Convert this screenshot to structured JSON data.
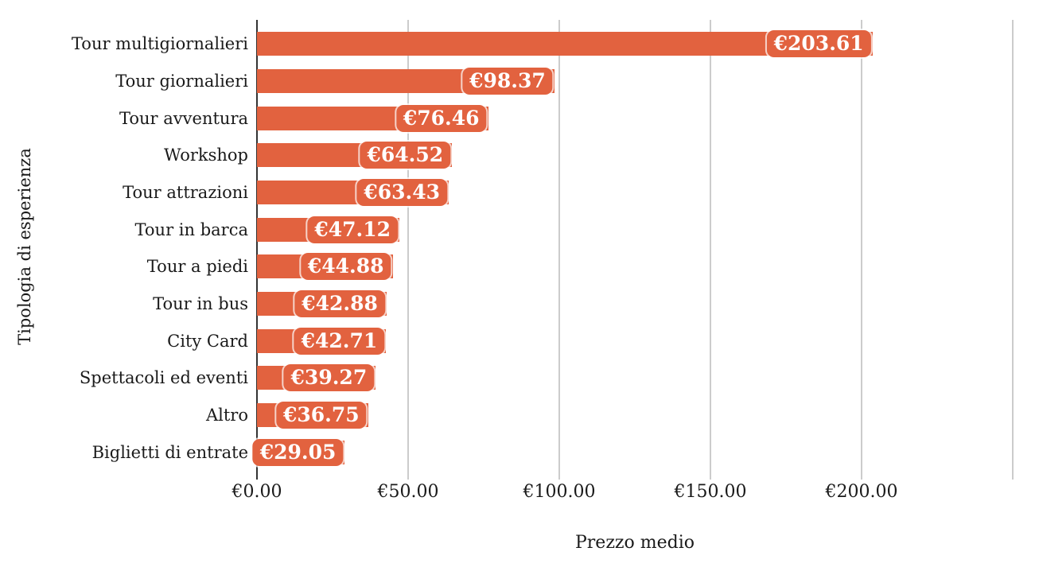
{
  "chart_data": {
    "type": "bar",
    "orientation": "horizontal",
    "xlabel": "Prezzo medio",
    "ylabel": "Tipologia di esperienza",
    "categories": [
      "Tour multigiornalieri",
      "Tour giornalieri",
      "Tour avventura",
      "Workshop",
      "Tour attrazioni",
      "Tour in barca",
      "Tour a piedi",
      "Tour in bus",
      "City Card",
      "Spettacoli ed eventi",
      "Altro",
      "Biglietti di entrate"
    ],
    "values": [
      203.61,
      98.37,
      76.46,
      64.52,
      63.43,
      47.12,
      44.88,
      42.88,
      42.71,
      39.27,
      36.75,
      29.05
    ],
    "value_labels": [
      "€203.61",
      "€98.37",
      "€76.46",
      "€64.52",
      "€63.43",
      "€47.12",
      "€44.88",
      "€42.88",
      "€42.71",
      "€39.27",
      "€36.75",
      "€29.05"
    ],
    "x_ticks": [
      {
        "value": 0,
        "label": "€0.00"
      },
      {
        "value": 50,
        "label": "€50.00"
      },
      {
        "value": 100,
        "label": "€100.00"
      },
      {
        "value": 150,
        "label": "€150.00"
      },
      {
        "value": 200,
        "label": "€200.00"
      },
      {
        "value": 250,
        "label": ""
      }
    ],
    "xlim": [
      0,
      250
    ],
    "grid": "vertical",
    "legend": "none",
    "colors": {
      "bar": "#E2623F",
      "value_text": "#FFFFFF",
      "grid": "#CCCCCC",
      "axis": "#333333",
      "text": "#1A1A1A",
      "background": "#FFFFFF"
    }
  }
}
